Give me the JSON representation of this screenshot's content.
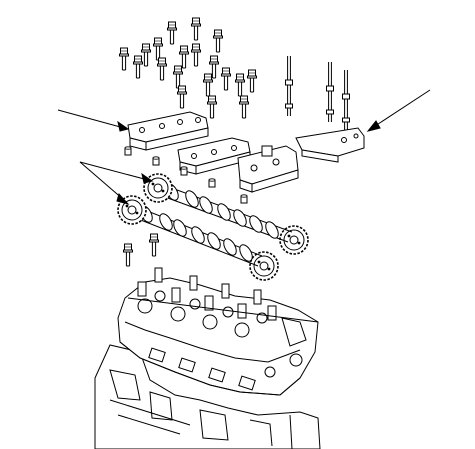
{
  "figure": {
    "kind": "exploded-view line drawing",
    "labels": [],
    "parts": [
      "cylinder-head",
      "engine-block",
      "intake-camshaft",
      "exhaust-camshaft",
      "cam-sprocket",
      "camshaft-holder",
      "camshaft-holder-bolt",
      "dowel-pin",
      "head-bolt",
      "stud-bolt",
      "bracket"
    ],
    "leader_lines": 4
  },
  "colors": {
    "ink": "#000000",
    "paper": "#ffffff"
  }
}
